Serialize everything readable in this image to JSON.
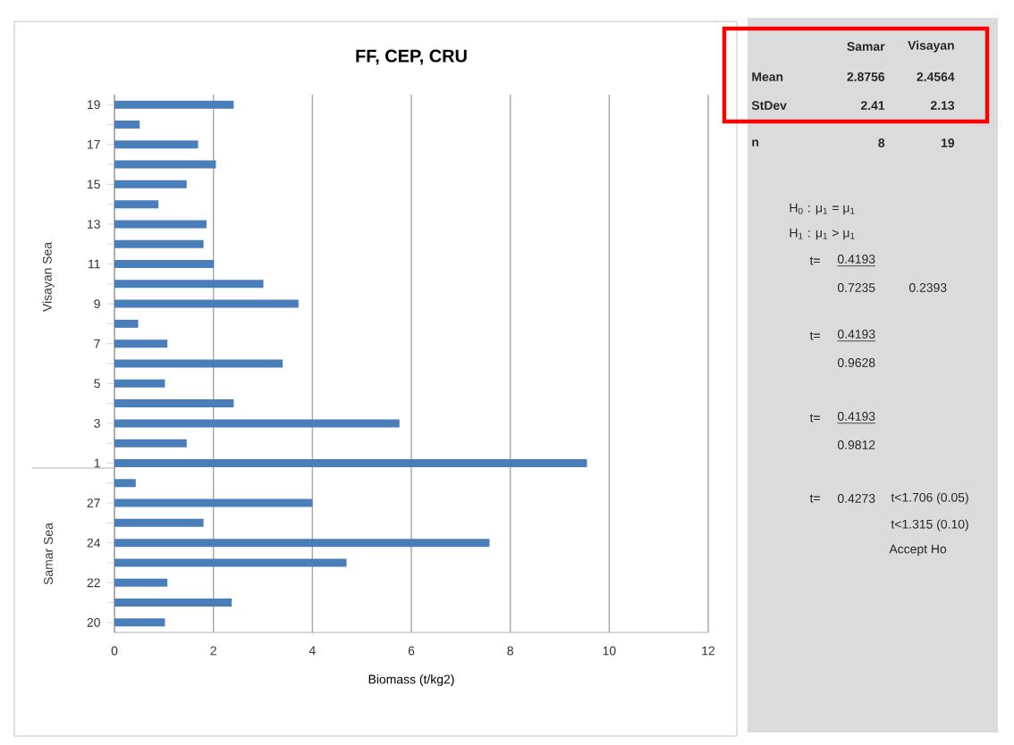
{
  "chart_data": [
    {
      "type": "bar",
      "orientation": "horizontal",
      "title": "FF, CEP, CRU",
      "xlabel": "Biomass (t/kg2)",
      "categories": [
        "19",
        null,
        "17",
        null,
        "15",
        null,
        "13",
        null,
        "11",
        null,
        "9",
        null,
        "7",
        null,
        "5",
        null,
        "3",
        null,
        "1",
        null,
        "27",
        null,
        "24",
        null,
        "22",
        null,
        "20"
      ],
      "values": [
        2.41,
        0.51,
        1.69,
        2.05,
        1.46,
        0.89,
        1.86,
        1.8,
        2.01,
        3.01,
        3.72,
        0.48,
        1.07,
        3.4,
        1.02,
        2.41,
        5.76,
        1.46,
        9.55,
        0.43,
        4.0,
        1.8,
        7.58,
        4.69,
        1.07,
        2.37,
        1.02
      ],
      "color": "#4a7ebb",
      "xlim": [
        0,
        12
      ],
      "xticks": [
        0,
        2,
        4,
        6,
        8,
        10,
        12
      ],
      "grid": "x",
      "annotations": [
        "Visayan Sea",
        "Samar Sea"
      ]
    },
    {
      "type": "other",
      "annotations": [
        "Samar",
        "Visayan",
        "Mean",
        "2.8756",
        "2.4564",
        "StDev",
        "2.41",
        "2.13",
        "n",
        "8",
        "19",
        "H$_{0}$ : μ$_{1}$ = μ$_{1}$",
        "H$_{1}$ : μ$_{1}$ > μ$_{1}$",
        "t=",
        "0.4193",
        "0.7235",
        "0.2393",
        "t=",
        "0.4193",
        "0.9628",
        "t=",
        "0.4193",
        "0.9812",
        "t=",
        "0.4273",
        "t<1.706 (0.05)",
        "t<1.315 (0.10)",
        "Accept Ho"
      ]
    }
  ]
}
